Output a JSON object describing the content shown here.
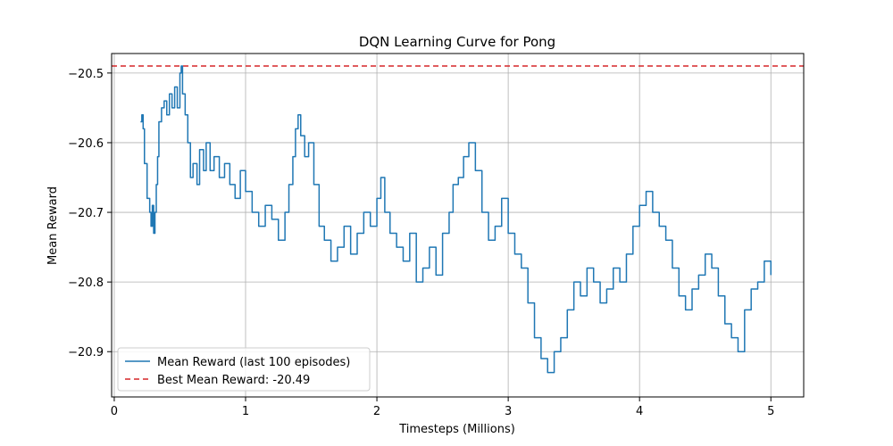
{
  "chart_data": {
    "type": "line",
    "title": "DQN Learning Curve for Pong",
    "xlabel": "Timesteps (Millions)",
    "ylabel": "Mean Reward",
    "xlim": [
      -0.02,
      5.25
    ],
    "ylim": [
      -20.965,
      -20.472
    ],
    "xticks": [
      0,
      1,
      2,
      3,
      4,
      5
    ],
    "yticks": [
      -20.5,
      -20.6,
      -20.7,
      -20.8,
      -20.9
    ],
    "grid": true,
    "legend_position": "lower-left",
    "colors": {
      "series": "#1f77b4",
      "best": "#d62728",
      "grid": "#b0b0b0"
    },
    "series": [
      {
        "name": "Mean Reward (last 100 episodes)",
        "style": "solid",
        "x": [
          0.2,
          0.21,
          0.22,
          0.23,
          0.25,
          0.27,
          0.28,
          0.29,
          0.3,
          0.31,
          0.32,
          0.33,
          0.34,
          0.36,
          0.38,
          0.4,
          0.42,
          0.44,
          0.46,
          0.48,
          0.5,
          0.51,
          0.52,
          0.54,
          0.56,
          0.58,
          0.6,
          0.63,
          0.65,
          0.68,
          0.7,
          0.73,
          0.76,
          0.8,
          0.84,
          0.88,
          0.92,
          0.96,
          1.0,
          1.05,
          1.1,
          1.15,
          1.2,
          1.25,
          1.3,
          1.33,
          1.36,
          1.38,
          1.4,
          1.42,
          1.45,
          1.48,
          1.52,
          1.56,
          1.6,
          1.65,
          1.7,
          1.75,
          1.8,
          1.85,
          1.9,
          1.95,
          2.0,
          2.03,
          2.06,
          2.1,
          2.15,
          2.2,
          2.25,
          2.3,
          2.35,
          2.4,
          2.45,
          2.5,
          2.55,
          2.58,
          2.62,
          2.66,
          2.7,
          2.75,
          2.8,
          2.85,
          2.9,
          2.95,
          3.0,
          3.05,
          3.1,
          3.15,
          3.2,
          3.25,
          3.3,
          3.35,
          3.4,
          3.45,
          3.5,
          3.55,
          3.6,
          3.65,
          3.7,
          3.75,
          3.8,
          3.85,
          3.9,
          3.95,
          4.0,
          4.05,
          4.1,
          4.15,
          4.2,
          4.25,
          4.3,
          4.35,
          4.4,
          4.45,
          4.5,
          4.55,
          4.6,
          4.65,
          4.7,
          4.75,
          4.8,
          4.85,
          4.9,
          4.95,
          5.0
        ],
        "y": [
          -20.57,
          -20.56,
          -20.58,
          -20.63,
          -20.68,
          -20.7,
          -20.72,
          -20.69,
          -20.73,
          -20.7,
          -20.66,
          -20.62,
          -20.57,
          -20.55,
          -20.54,
          -20.56,
          -20.53,
          -20.55,
          -20.52,
          -20.55,
          -20.5,
          -20.49,
          -20.53,
          -20.56,
          -20.6,
          -20.65,
          -20.63,
          -20.66,
          -20.61,
          -20.64,
          -20.6,
          -20.64,
          -20.62,
          -20.65,
          -20.63,
          -20.66,
          -20.68,
          -20.64,
          -20.67,
          -20.7,
          -20.72,
          -20.69,
          -20.71,
          -20.74,
          -20.7,
          -20.66,
          -20.62,
          -20.58,
          -20.56,
          -20.59,
          -20.62,
          -20.6,
          -20.66,
          -20.72,
          -20.74,
          -20.77,
          -20.75,
          -20.72,
          -20.76,
          -20.73,
          -20.7,
          -20.72,
          -20.68,
          -20.65,
          -20.7,
          -20.73,
          -20.75,
          -20.77,
          -20.73,
          -20.8,
          -20.78,
          -20.75,
          -20.79,
          -20.73,
          -20.7,
          -20.66,
          -20.65,
          -20.62,
          -20.6,
          -20.64,
          -20.7,
          -20.74,
          -20.72,
          -20.68,
          -20.73,
          -20.76,
          -20.78,
          -20.83,
          -20.88,
          -20.91,
          -20.93,
          -20.9,
          -20.88,
          -20.84,
          -20.8,
          -20.82,
          -20.78,
          -20.8,
          -20.83,
          -20.81,
          -20.78,
          -20.8,
          -20.76,
          -20.72,
          -20.69,
          -20.67,
          -20.7,
          -20.72,
          -20.74,
          -20.78,
          -20.82,
          -20.84,
          -20.81,
          -20.79,
          -20.76,
          -20.78,
          -20.82,
          -20.86,
          -20.88,
          -20.9,
          -20.84,
          -20.81,
          -20.8,
          -20.77,
          -20.79
        ]
      },
      {
        "name": "Best Mean Reward: -20.49",
        "style": "dashed",
        "x": [
          -0.02,
          5.25
        ],
        "y": [
          -20.49,
          -20.49
        ]
      }
    ]
  }
}
